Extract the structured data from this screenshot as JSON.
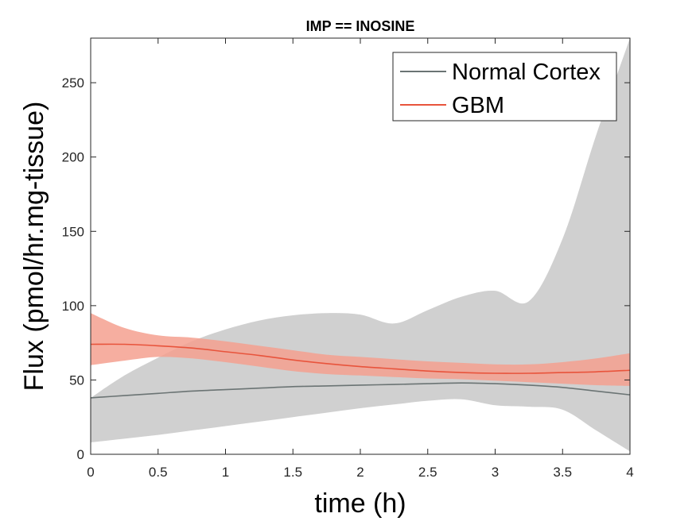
{
  "chart_data": {
    "type": "line",
    "title": "IMP == INOSINE",
    "xlabel": "time (h)",
    "ylabel": "Flux (pmol/hr.mg-tissue)",
    "xlim": [
      0,
      4
    ],
    "ylim": [
      0,
      280
    ],
    "xticks": [
      0,
      0.5,
      1,
      1.5,
      2,
      2.5,
      3,
      3.5,
      4
    ],
    "xtick_labels": [
      "0",
      "0.5",
      "1",
      "1.5",
      "2",
      "2.5",
      "3",
      "3.5",
      "4"
    ],
    "yticks": [
      0,
      50,
      100,
      150,
      200,
      250
    ],
    "ytick_labels": [
      "0",
      "50",
      "100",
      "150",
      "200",
      "250"
    ],
    "grid": false,
    "legend_position": "top-right",
    "series": [
      {
        "name": "Normal Cortex",
        "color": "#6b7474",
        "band_color": "#d0d0d0",
        "x": [
          0,
          0.25,
          0.5,
          0.75,
          1.0,
          1.25,
          1.5,
          1.75,
          2.0,
          2.25,
          2.5,
          2.75,
          3.0,
          3.25,
          3.5,
          3.75,
          4.0
        ],
        "y": [
          38,
          39.5,
          41,
          42.5,
          43.5,
          44.5,
          45.5,
          46,
          46.5,
          47,
          47.5,
          48,
          47.5,
          46.5,
          45,
          42.5,
          40
        ],
        "lower": [
          8,
          10.5,
          13,
          16,
          19,
          22,
          25,
          28,
          31,
          33.5,
          36,
          37,
          33,
          32,
          30,
          16,
          2
        ],
        "upper": [
          38,
          53,
          65,
          76,
          84,
          90,
          93.5,
          95,
          94,
          88,
          97,
          106,
          110,
          103,
          145,
          215,
          280
        ]
      },
      {
        "name": "GBM",
        "color": "#e8543c",
        "band_color": "#f4a08f",
        "x": [
          0,
          0.25,
          0.5,
          0.75,
          1.0,
          1.25,
          1.5,
          1.75,
          2.0,
          2.25,
          2.5,
          2.75,
          3.0,
          3.25,
          3.5,
          3.75,
          4.0
        ],
        "y": [
          74,
          74,
          73,
          71.5,
          69,
          66.5,
          63.5,
          61,
          59,
          57.5,
          56,
          55,
          54.5,
          54.5,
          55,
          55.5,
          56.5
        ],
        "lower": [
          60,
          63,
          65.5,
          64.5,
          62,
          59,
          56,
          54,
          53,
          52,
          51,
          50.5,
          49.5,
          48.5,
          47.5,
          46.5,
          46
        ],
        "upper": [
          95,
          85,
          80,
          78.5,
          76,
          73,
          70,
          67,
          65.5,
          64,
          62.5,
          61.5,
          60.5,
          60.5,
          62,
          64.5,
          68
        ]
      }
    ]
  }
}
